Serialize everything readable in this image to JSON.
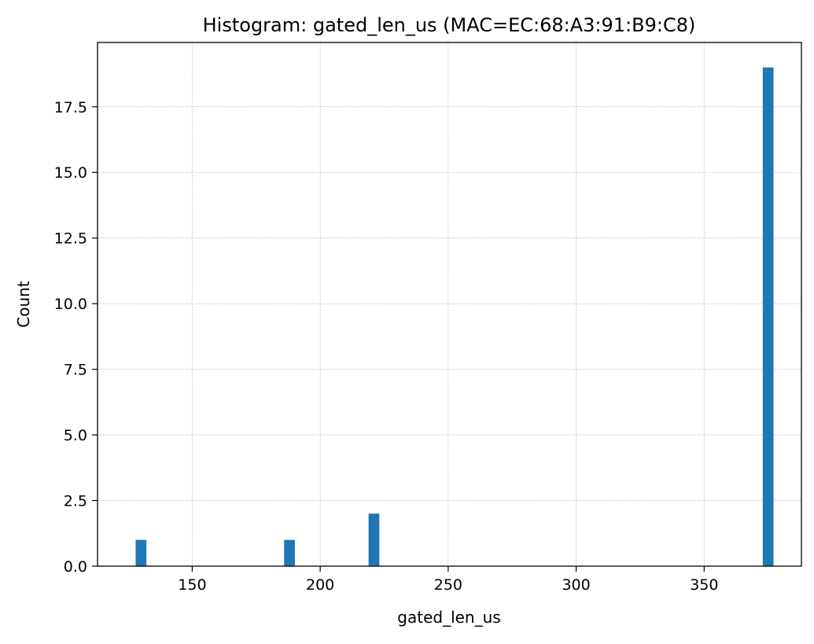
{
  "chart_data": {
    "type": "bar",
    "title": "Histogram: gated_len_us (MAC=EC:68:A3:91:B9:C8)",
    "xlabel": "gated_len_us",
    "ylabel": "Count",
    "xlim": [
      113,
      388
    ],
    "ylim": [
      0,
      19.95
    ],
    "xticks": [
      150,
      200,
      250,
      300,
      350
    ],
    "xtick_labels": [
      "150",
      "200",
      "250",
      "300",
      "350"
    ],
    "yticks": [
      0,
      2.5,
      5,
      7.5,
      10,
      12.5,
      15,
      17.5
    ],
    "ytick_labels": [
      "0.0",
      "2.5",
      "5.0",
      "7.5",
      "10.0",
      "12.5",
      "15.0",
      "17.5"
    ],
    "grid": true,
    "bin_width": 4.2,
    "bars": [
      {
        "x": 130,
        "value": 1
      },
      {
        "x": 188,
        "value": 1
      },
      {
        "x": 221,
        "value": 2
      },
      {
        "x": 375,
        "value": 19
      }
    ],
    "colors": {
      "bar": "#1f77b4",
      "grid": "#b0b0b0",
      "axis": "#000000"
    }
  }
}
